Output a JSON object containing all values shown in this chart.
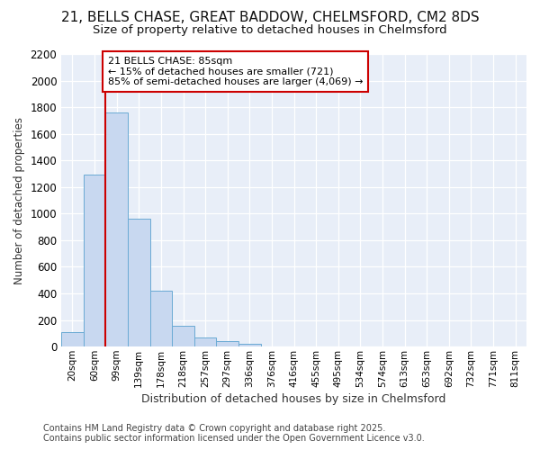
{
  "title_line1": "21, BELLS CHASE, GREAT BADDOW, CHELMSFORD, CM2 8DS",
  "title_line2": "Size of property relative to detached houses in Chelmsford",
  "xlabel": "Distribution of detached houses by size in Chelmsford",
  "ylabel": "Number of detached properties",
  "categories": [
    "20sqm",
    "60sqm",
    "99sqm",
    "139sqm",
    "178sqm",
    "218sqm",
    "257sqm",
    "297sqm",
    "336sqm",
    "376sqm",
    "416sqm",
    "455sqm",
    "495sqm",
    "534sqm",
    "574sqm",
    "613sqm",
    "653sqm",
    "692sqm",
    "732sqm",
    "771sqm",
    "811sqm"
  ],
  "values": [
    110,
    1290,
    1760,
    960,
    420,
    155,
    70,
    40,
    20,
    0,
    0,
    0,
    0,
    0,
    0,
    0,
    0,
    0,
    0,
    0,
    0
  ],
  "bar_color": "#c8d8f0",
  "bar_edge_color": "#6aaad4",
  "vline_x": 1.5,
  "vline_color": "#cc0000",
  "annotation_text": "21 BELLS CHASE: 85sqm\n← 15% of detached houses are smaller (721)\n85% of semi-detached houses are larger (4,069) →",
  "annotation_box_color": "#cc0000",
  "annotation_fontsize": 8,
  "ylim": [
    0,
    2200
  ],
  "yticks": [
    0,
    200,
    400,
    600,
    800,
    1000,
    1200,
    1400,
    1600,
    1800,
    2000,
    2200
  ],
  "background_color": "#ffffff",
  "plot_bg_color": "#e8eef8",
  "grid_color": "#ffffff",
  "footer_line1": "Contains HM Land Registry data © Crown copyright and database right 2025.",
  "footer_line2": "Contains public sector information licensed under the Open Government Licence v3.0.",
  "footer_fontsize": 7,
  "title1_fontsize": 11,
  "title2_fontsize": 9.5
}
